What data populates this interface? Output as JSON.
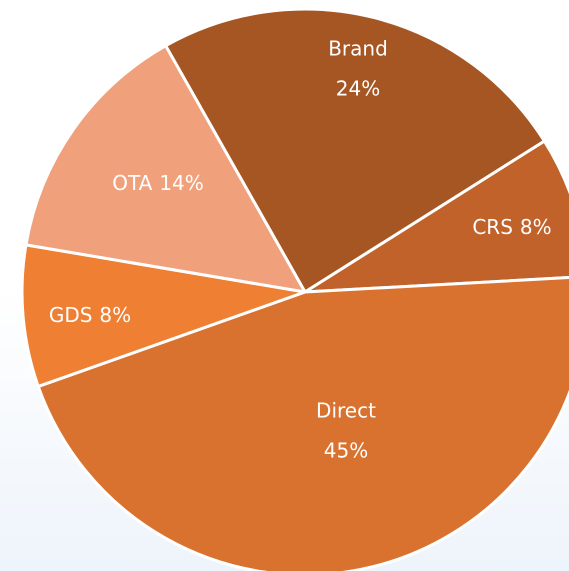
{
  "chart_data": {
    "type": "pie",
    "categories": [
      "Brand",
      "CRS",
      "Direct",
      "GDS",
      "OTA"
    ],
    "values": [
      24,
      8,
      45,
      8,
      14
    ],
    "value_labels": [
      "24%",
      "8%",
      "45%",
      "8%",
      "14%"
    ],
    "colors": [
      "#a65623",
      "#c0622a",
      "#d9722f",
      "#ee7f33",
      "#f0a07b"
    ]
  }
}
